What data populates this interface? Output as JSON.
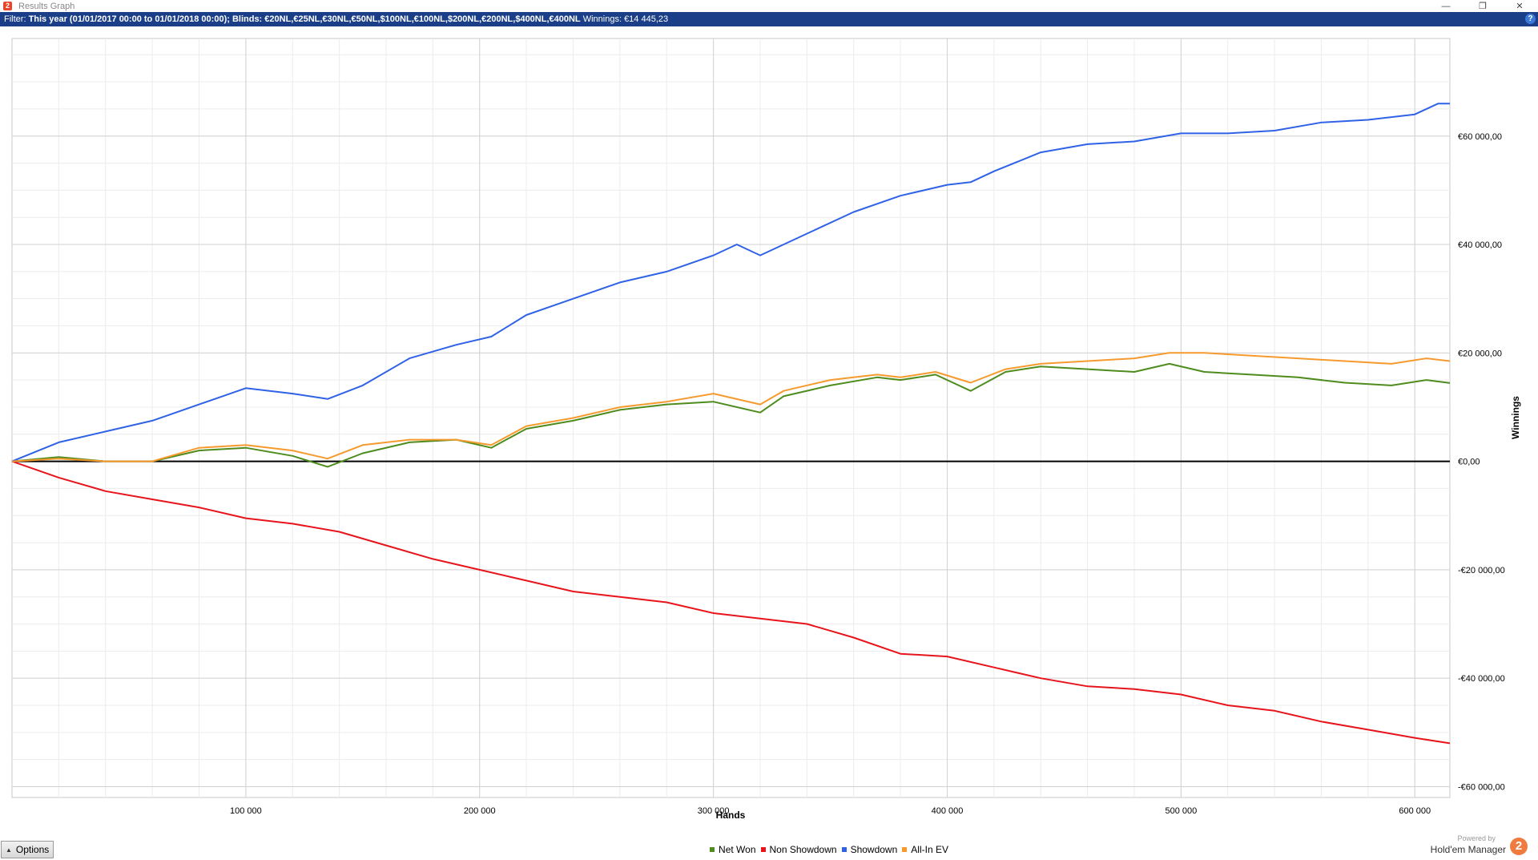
{
  "window": {
    "title": "Results Graph",
    "app_icon_glyph": "2",
    "controls": [
      "—",
      "❐",
      "✕"
    ]
  },
  "filter": {
    "label": "Filter: ",
    "text": "This year (01/01/2017 00:00 to 01/01/2018 00:00); Blinds: €20NL,€25NL,€30NL,€50NL,$100NL,€100NL,$200NL,€200NL,$400NL,€400NL",
    "winnings_text": "  Winnings: €14 445,23",
    "help_glyph": "?"
  },
  "chart_data": {
    "type": "line",
    "xlabel": "Hands",
    "ylabel": "Winnings",
    "xlim": [
      0,
      615000
    ],
    "ylim": [
      -62000,
      78000
    ],
    "x_ticks": [
      100000,
      200000,
      300000,
      400000,
      500000,
      600000
    ],
    "x_tick_labels": [
      "100 000",
      "200 000",
      "300 000",
      "400 000",
      "500 000",
      "600 000"
    ],
    "y_ticks": [
      -60000,
      -40000,
      -20000,
      0,
      20000,
      40000,
      60000
    ],
    "y_tick_labels": [
      "-€60 000,00",
      "-€40 000,00",
      "-€20 000,00",
      "€0,00",
      "€20 000,00",
      "€40 000,00",
      "€60 000,00"
    ],
    "grid": true,
    "legend_position": "bottom-center",
    "series": [
      {
        "name": "Net Won",
        "color": "#4e8c1e",
        "x": [
          0,
          20000,
          40000,
          60000,
          80000,
          100000,
          120000,
          135000,
          150000,
          170000,
          190000,
          205000,
          220000,
          240000,
          260000,
          280000,
          300000,
          320000,
          330000,
          350000,
          370000,
          380000,
          395000,
          410000,
          425000,
          440000,
          460000,
          480000,
          495000,
          510000,
          530000,
          550000,
          570000,
          590000,
          605000,
          615000
        ],
        "y": [
          0,
          800,
          0,
          0,
          2000,
          2500,
          1000,
          -1000,
          1500,
          3500,
          4000,
          2500,
          6000,
          7500,
          9500,
          10500,
          11000,
          9000,
          12000,
          14000,
          15500,
          15000,
          16000,
          13000,
          16500,
          17500,
          17000,
          16500,
          18000,
          16500,
          16000,
          15500,
          14500,
          14000,
          15000,
          14445
        ]
      },
      {
        "name": "Non Showdown",
        "color": "#e8141b",
        "x": [
          0,
          20000,
          40000,
          60000,
          80000,
          100000,
          120000,
          140000,
          160000,
          180000,
          200000,
          220000,
          240000,
          260000,
          280000,
          300000,
          320000,
          340000,
          360000,
          380000,
          400000,
          420000,
          440000,
          460000,
          480000,
          500000,
          520000,
          540000,
          560000,
          580000,
          600000,
          615000
        ],
        "y": [
          0,
          -3000,
          -5500,
          -7000,
          -8500,
          -10500,
          -11500,
          -13000,
          -15500,
          -18000,
          -20000,
          -22000,
          -24000,
          -25000,
          -26000,
          -28000,
          -29000,
          -30000,
          -32500,
          -35500,
          -36000,
          -38000,
          -40000,
          -41500,
          -42000,
          -43000,
          -45000,
          -46000,
          -48000,
          -49500,
          -51000,
          -52000
        ]
      },
      {
        "name": "Showdown",
        "color": "#2f62e6",
        "x": [
          0,
          20000,
          40000,
          60000,
          80000,
          100000,
          120000,
          135000,
          150000,
          170000,
          190000,
          205000,
          220000,
          240000,
          260000,
          280000,
          300000,
          310000,
          320000,
          340000,
          360000,
          380000,
          400000,
          410000,
          420000,
          440000,
          460000,
          480000,
          500000,
          520000,
          540000,
          560000,
          580000,
          600000,
          610000,
          615000
        ],
        "y": [
          0,
          3500,
          5500,
          7500,
          10500,
          13500,
          12500,
          11500,
          14000,
          19000,
          21500,
          23000,
          27000,
          30000,
          33000,
          35000,
          38000,
          40000,
          38000,
          42000,
          46000,
          49000,
          51000,
          51500,
          53500,
          57000,
          58500,
          59000,
          60500,
          60500,
          61000,
          62500,
          63000,
          64000,
          66000,
          66000
        ]
      },
      {
        "name": "All-In EV",
        "color": "#f69a2e",
        "x": [
          0,
          20000,
          40000,
          60000,
          80000,
          100000,
          120000,
          135000,
          150000,
          170000,
          190000,
          205000,
          220000,
          240000,
          260000,
          280000,
          300000,
          320000,
          330000,
          350000,
          370000,
          380000,
          395000,
          410000,
          425000,
          440000,
          460000,
          480000,
          495000,
          510000,
          530000,
          550000,
          570000,
          590000,
          605000,
          615000
        ],
        "y": [
          0,
          500,
          0,
          0,
          2500,
          3000,
          2000,
          500,
          3000,
          4000,
          4000,
          3000,
          6500,
          8000,
          10000,
          11000,
          12500,
          10500,
          13000,
          15000,
          16000,
          15500,
          16500,
          14500,
          17000,
          18000,
          18500,
          19000,
          20000,
          20000,
          19500,
          19000,
          18500,
          18000,
          19000,
          18500
        ]
      }
    ],
    "zero_line_color": "#000000"
  },
  "bottom": {
    "options_label": "Options",
    "options_arrow": "▲",
    "powered_by": "Powered by",
    "brand": "Hold'em Manager",
    "brand_glyph": "2"
  }
}
